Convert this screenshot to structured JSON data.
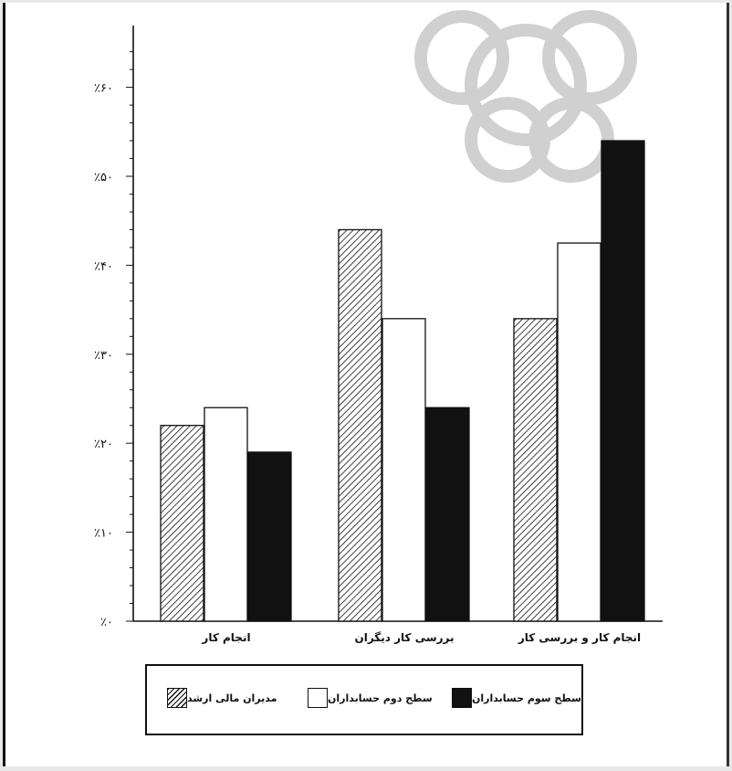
{
  "chart_data": {
    "type": "bar",
    "categories": [
      "انجام کار",
      "بررسی کار دیگران",
      "انجام کار و بررسی کار"
    ],
    "series": [
      {
        "name": "مدیران مالی ارشد",
        "values": [
          22,
          44,
          34
        ],
        "fill": "hatch"
      },
      {
        "name": "سطح دوم حسابداران",
        "values": [
          24,
          34,
          42.5
        ],
        "fill": "white"
      },
      {
        "name": "سطح سوم حسابداران",
        "values": [
          19,
          24,
          54
        ],
        "fill": "black"
      }
    ],
    "yticks": [
      0,
      10,
      20,
      30,
      40,
      50,
      60
    ],
    "ytick_labels": [
      "٪۰",
      "٪۱۰",
      "٪۲۰",
      "٪۳۰",
      "٪۴۰",
      "٪۵۰",
      "٪۶۰"
    ],
    "ylim": [
      0,
      65
    ],
    "grid": false,
    "legend_position": "bottom",
    "colors": {
      "hatch": "#111111",
      "white": "#ffffff",
      "black": "#111111"
    }
  }
}
